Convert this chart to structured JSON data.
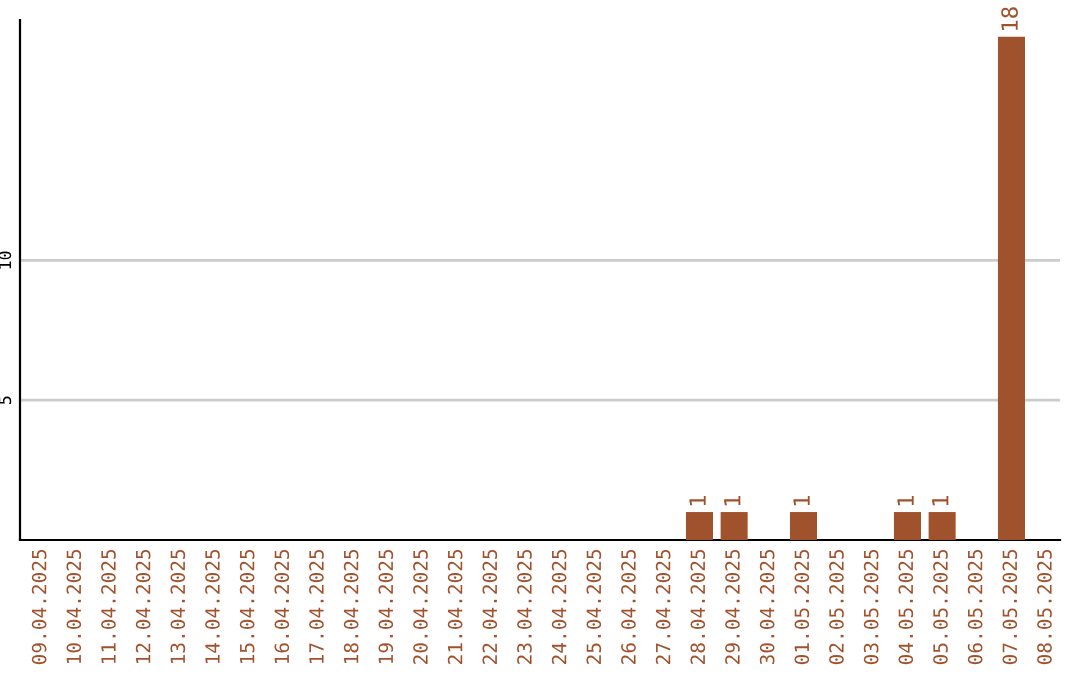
{
  "chart_data": {
    "type": "bar",
    "categories": [
      "09.04.2025",
      "10.04.2025",
      "11.04.2025",
      "12.04.2025",
      "13.04.2025",
      "14.04.2025",
      "15.04.2025",
      "16.04.2025",
      "17.04.2025",
      "18.04.2025",
      "19.04.2025",
      "20.04.2025",
      "21.04.2025",
      "22.04.2025",
      "23.04.2025",
      "24.04.2025",
      "25.04.2025",
      "26.04.2025",
      "27.04.2025",
      "28.04.2025",
      "29.04.2025",
      "30.04.2025",
      "01.05.2025",
      "02.05.2025",
      "03.05.2025",
      "04.05.2025",
      "05.05.2025",
      "06.05.2025",
      "07.05.2025",
      "08.05.2025"
    ],
    "values": [
      0,
      0,
      0,
      0,
      0,
      0,
      0,
      0,
      0,
      0,
      0,
      0,
      0,
      0,
      0,
      0,
      0,
      0,
      0,
      1,
      1,
      0,
      1,
      0,
      0,
      1,
      1,
      0,
      18,
      0
    ],
    "value_labels": [
      null,
      null,
      null,
      null,
      null,
      null,
      null,
      null,
      null,
      null,
      null,
      null,
      null,
      null,
      null,
      null,
      null,
      null,
      null,
      "1",
      "1",
      null,
      "1",
      null,
      null,
      "1",
      "1",
      null,
      "18",
      null
    ],
    "color": "#a0522d",
    "ylim": [
      0,
      18.6
    ],
    "yticks": [
      5,
      10
    ],
    "grid": "y"
  }
}
